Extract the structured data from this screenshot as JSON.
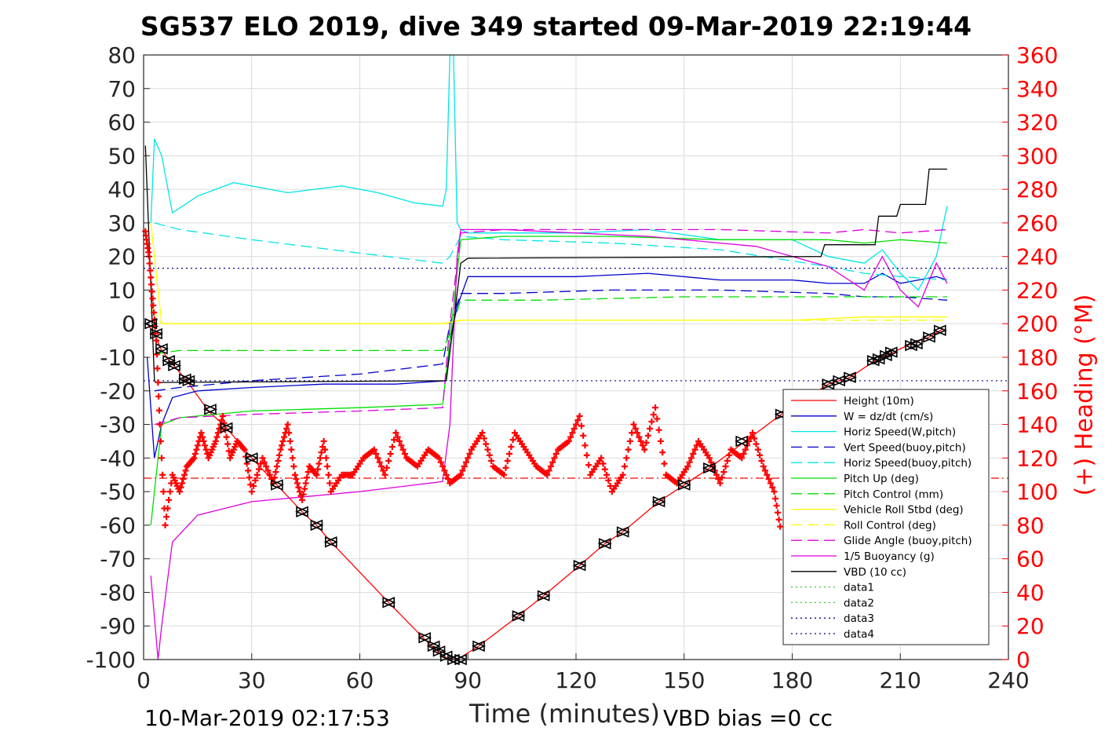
{
  "title": "SG537 ELO 2019, dive 349 started 09-Mar-2019 22:19:44",
  "xlabel": "Time (minutes)",
  "ylabel_right": "(+) Heading (°M)",
  "footer_left": "10-Mar-2019 02:17:53",
  "footer_right": "VBD bias =0 cc",
  "colors": {
    "red": "#ff0000",
    "blue": "#0000cc",
    "cyan": "#00e5e5",
    "green": "#00dd00",
    "yellow": "#ffff00",
    "magenta": "#dd00dd",
    "black": "#000000",
    "dotted_green": "#33cc33",
    "dotted_blue": "#000088"
  },
  "chart_data": {
    "type": "line",
    "xlim": [
      0,
      240
    ],
    "ylim": [
      -100,
      80
    ],
    "ylim_right": [
      0,
      360
    ],
    "xticks": [
      0,
      30,
      60,
      90,
      120,
      150,
      180,
      210,
      240
    ],
    "yticks": [
      80,
      70,
      60,
      50,
      40,
      30,
      20,
      10,
      0,
      -10,
      -20,
      -30,
      -40,
      -50,
      -60,
      -70,
      -80,
      -90,
      -100
    ],
    "yticks_right": [
      360,
      340,
      320,
      300,
      280,
      260,
      240,
      220,
      200,
      180,
      160,
      140,
      120,
      100,
      80,
      60,
      40,
      20,
      0
    ],
    "grid": true,
    "legend_position": "bottom-right",
    "series": [
      {
        "name": "Height (10m)",
        "color": "red",
        "style": "solid",
        "x": [
          1,
          3,
          5,
          8,
          12,
          18,
          23,
          30,
          37,
          44,
          48,
          52,
          60,
          68,
          78,
          81,
          84,
          87,
          93,
          104,
          111,
          121,
          128,
          133,
          143,
          150,
          157,
          167,
          177,
          190,
          196,
          203,
          207,
          213,
          218,
          222
        ],
        "y": [
          0,
          -3,
          -8,
          -12,
          -17,
          -26,
          -31,
          -40,
          -48,
          -56,
          -60,
          -65,
          -74,
          -83,
          -94,
          -97,
          -99.5,
          -100,
          -96,
          -87,
          -81,
          -72,
          -65.5,
          -62,
          -53,
          -48,
          -43,
          -35,
          -27,
          -18,
          -16,
          -11,
          -9,
          -6,
          -4,
          -1.5
        ]
      },
      {
        "name": "W = dz/dt (cm/s)",
        "color": "blue",
        "style": "solid",
        "x": [
          1,
          3,
          5,
          8,
          15,
          30,
          50,
          70,
          84,
          85,
          87,
          90,
          100,
          120,
          140,
          160,
          180,
          190,
          200,
          205,
          210,
          215,
          220,
          223
        ],
        "y": [
          -10,
          -40,
          -30,
          -22,
          -20,
          -19,
          -18,
          -18,
          -17,
          -5,
          5,
          14,
          14,
          14,
          15,
          13,
          13,
          12,
          12,
          15,
          12,
          13,
          14,
          13
        ]
      },
      {
        "name": "Horiz Speed(W,pitch)",
        "color": "cyan",
        "style": "solid",
        "x": [
          2,
          3,
          5,
          8,
          15,
          25,
          40,
          55,
          65,
          75,
          83,
          84,
          85,
          86,
          87,
          88,
          90,
          100,
          120,
          140,
          160,
          180,
          190,
          200,
          205,
          210,
          215,
          220,
          223
        ],
        "y": [
          30,
          55,
          50,
          33,
          38,
          42,
          39,
          41,
          39,
          36,
          35,
          40,
          80,
          80,
          30,
          28,
          27,
          27,
          27,
          28,
          25,
          25,
          20,
          18,
          22,
          15,
          10,
          20,
          35
        ]
      },
      {
        "name": "Vert Speed(buoy,pitch)",
        "color": "blue",
        "style": "dashed",
        "x": [
          3,
          10,
          30,
          60,
          83,
          85,
          88,
          100,
          130,
          160,
          190,
          200,
          210,
          223
        ],
        "y": [
          -20,
          -19,
          -17,
          -15,
          -12,
          0,
          9,
          9,
          10,
          10,
          9,
          8,
          8,
          7
        ]
      },
      {
        "name": "Horiz Speed(buoy,pitch)",
        "color": "cyan",
        "style": "dashed",
        "x": [
          3,
          10,
          30,
          60,
          83,
          85,
          88,
          100,
          130,
          160,
          190,
          200,
          210,
          223
        ],
        "y": [
          30,
          28,
          25,
          21,
          18,
          20,
          26,
          25,
          24,
          22,
          17,
          15,
          14,
          13
        ]
      },
      {
        "name": "Pitch Up (deg)",
        "color": "green",
        "style": "solid",
        "x": [
          2,
          5,
          10,
          30,
          60,
          83,
          85,
          88,
          100,
          130,
          160,
          190,
          200,
          210,
          223
        ],
        "y": [
          -60,
          -30,
          -28,
          -26,
          -25,
          -24,
          -5,
          25,
          26,
          26,
          25,
          25,
          24,
          25,
          24
        ]
      },
      {
        "name": "Pitch Control (mm)",
        "color": "green",
        "style": "dashed",
        "x": [
          3,
          10,
          50,
          83,
          85,
          88,
          110,
          150,
          190,
          223
        ],
        "y": [
          -9,
          -8,
          -8,
          -8,
          -3,
          7,
          7,
          8,
          8,
          8
        ]
      },
      {
        "name": "Vehicle Roll Stbd (deg)",
        "color": "yellow",
        "style": "solid",
        "x": [
          2,
          5,
          10,
          30,
          60,
          83,
          88,
          120,
          150,
          180,
          200,
          223
        ],
        "y": [
          30,
          0,
          0,
          0,
          0,
          0,
          1,
          1,
          1,
          1,
          2,
          2
        ]
      },
      {
        "name": "Roll Control (deg)",
        "color": "yellow",
        "style": "dashed",
        "x": [
          2,
          5,
          10,
          50,
          83,
          88,
          120,
          180,
          200,
          223
        ],
        "y": [
          5,
          0,
          0,
          0,
          0,
          1,
          1,
          1,
          1,
          1
        ]
      },
      {
        "name": "Glide Angle (buoy,pitch)",
        "color": "magenta",
        "style": "dashed",
        "x": [
          3,
          10,
          30,
          60,
          83,
          85,
          88,
          100,
          130,
          160,
          190,
          200,
          210,
          223
        ],
        "y": [
          -30,
          -28,
          -27,
          -26,
          -25,
          0,
          27,
          28,
          28,
          28,
          27,
          28,
          27,
          28
        ]
      },
      {
        "name": "1/5 Buoyancy (g)",
        "color": "magenta",
        "style": "solid",
        "x": [
          2,
          4,
          5,
          8,
          15,
          30,
          60,
          83,
          85,
          87,
          88,
          100,
          140,
          170,
          190,
          200,
          205,
          210,
          215,
          220,
          223
        ],
        "y": [
          -75,
          -100,
          -90,
          -65,
          -57,
          -53,
          -50,
          -47,
          -30,
          20,
          28,
          28,
          26,
          23,
          17,
          10,
          20,
          10,
          5,
          18,
          12
        ]
      },
      {
        "name": "VBD (10 cc)",
        "color": "black",
        "style": "solid",
        "x": [
          0.5,
          3,
          3.5,
          84,
          86,
          88,
          90,
          188,
          189,
          203,
          204,
          209,
          210,
          217,
          218,
          223
        ],
        "y": [
          53,
          -17,
          -17.5,
          -17,
          0,
          18,
          19.5,
          20,
          23.5,
          23.5,
          32,
          32,
          35.5,
          35.5,
          46,
          46
        ]
      },
      {
        "name": "data1",
        "color": "dotted_green",
        "style": "dotted",
        "x": [],
        "y": []
      },
      {
        "name": "data2",
        "color": "dotted_green",
        "style": "dotted",
        "x": [],
        "y": []
      },
      {
        "name": "data3",
        "color": "dotted_blue",
        "style": "dotted",
        "x": [],
        "y": []
      },
      {
        "name": "data4",
        "color": "dotted_blue",
        "style": "dotted",
        "x": [
          0,
          240
        ],
        "y": [
          16.5,
          16.5
        ]
      }
    ],
    "reference_lines": [
      {
        "color": "dotted_blue",
        "style": "dotted",
        "y": -17
      },
      {
        "color": "red",
        "style": "dashdot",
        "y": -46
      }
    ],
    "heading": {
      "color": "red",
      "x": [
        0.5,
        1.5,
        2.5,
        3.5,
        4.5,
        6,
        8,
        10,
        12,
        14,
        16,
        18,
        20,
        22,
        24,
        26,
        28,
        30,
        33,
        36,
        38,
        40,
        42,
        44,
        46,
        48,
        50,
        52,
        55,
        58,
        61,
        64,
        67,
        70,
        73,
        76,
        79,
        82,
        85,
        88,
        91,
        94,
        97,
        100,
        103,
        106,
        109,
        112,
        115,
        118,
        121,
        124,
        127,
        130,
        133,
        136,
        139,
        142,
        145,
        148,
        151,
        154,
        157,
        160,
        163,
        166,
        169,
        172,
        175,
        177
      ],
      "y": [
        255,
        240,
        215,
        190,
        140,
        80,
        110,
        100,
        115,
        120,
        135,
        120,
        130,
        145,
        120,
        130,
        125,
        100,
        120,
        105,
        125,
        140,
        110,
        95,
        115,
        110,
        130,
        100,
        110,
        110,
        120,
        125,
        110,
        135,
        120,
        115,
        125,
        120,
        105,
        110,
        125,
        135,
        115,
        110,
        135,
        125,
        115,
        110,
        125,
        130,
        145,
        110,
        120,
        100,
        110,
        140,
        125,
        150,
        110,
        105,
        115,
        130,
        120,
        105,
        125,
        120,
        135,
        115,
        100,
        75
      ]
    },
    "markers": {
      "color": "black",
      "x": [
        2,
        3.5,
        5,
        7,
        8.5,
        11.5,
        12.5,
        18.5,
        23,
        30,
        37,
        44,
        48,
        52,
        68,
        78,
        80.5,
        82,
        84,
        86,
        88,
        93,
        104,
        111,
        121,
        128,
        133,
        143,
        150,
        157,
        166,
        177,
        190,
        193,
        196,
        202.5,
        204,
        206,
        207.5,
        213,
        214.5,
        218,
        221
      ],
      "y": [
        0,
        -3,
        -7.5,
        -11,
        -12.5,
        -16.5,
        -17,
        -25.5,
        -31,
        -40,
        -48,
        -56,
        -60,
        -65,
        -83,
        -93.5,
        -96,
        -97.5,
        -99,
        -100,
        -100,
        -96,
        -87,
        -81,
        -72,
        -65.5,
        -62,
        -53,
        -48,
        -43,
        -35,
        -27,
        -18,
        -17,
        -16,
        -11,
        -10.5,
        -9.5,
        -8.5,
        -6.5,
        -6,
        -4,
        -2
      ]
    }
  }
}
